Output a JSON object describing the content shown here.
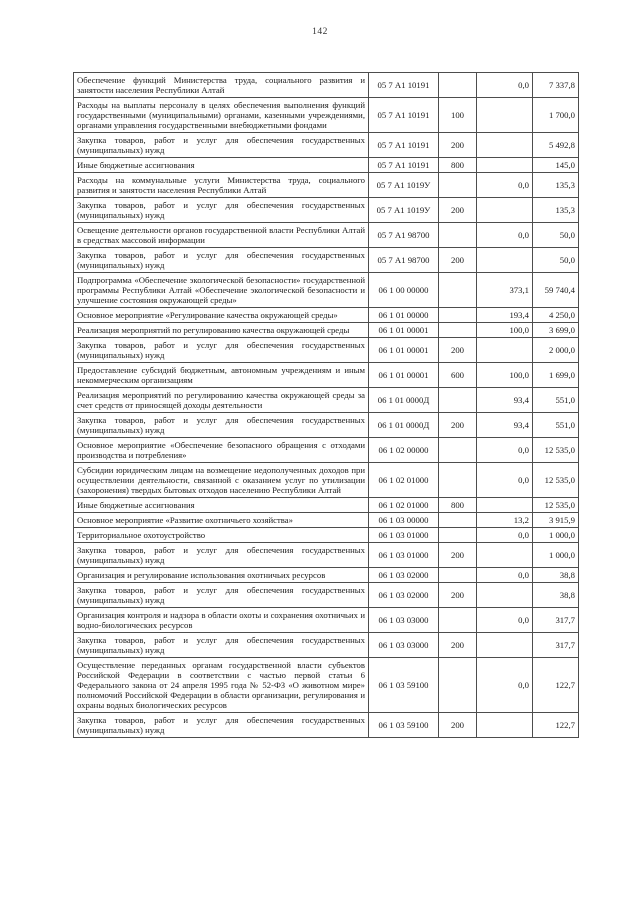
{
  "page": {
    "number": "142"
  },
  "table": {
    "rows": [
      {
        "name": "Обеспечение функций Министерства труда, социального развития и занятости населения Республики Алтай",
        "code": "05 7 А1 10191",
        "group": "",
        "pct": "0,0",
        "amount": "7 337,8"
      },
      {
        "name": "Расходы на выплаты персоналу в целях обеспечения выполнения функций государственными (муниципальными) органами, казенными учреждениями, органами управления государственными внебюджетными фондами",
        "code": "05 7 А1 10191",
        "group": "100",
        "pct": "",
        "amount": "1 700,0"
      },
      {
        "name": "Закупка товаров, работ и услуг для обеспечения государственных (муниципальных) нужд",
        "code": "05 7 А1 10191",
        "group": "200",
        "pct": "",
        "amount": "5 492,8"
      },
      {
        "name": "Иные бюджетные ассигнования",
        "code": "05 7 А1 10191",
        "group": "800",
        "pct": "",
        "amount": "145,0"
      },
      {
        "name": "Расходы на коммунальные услуги Министерства труда, социального развития и занятости населения Республики Алтай",
        "code": "05 7 А1 1019У",
        "group": "",
        "pct": "0,0",
        "amount": "135,3"
      },
      {
        "name": "Закупка товаров, работ и услуг для обеспечения государственных (муниципальных) нужд",
        "code": "05 7 А1 1019У",
        "group": "200",
        "pct": "",
        "amount": "135,3"
      },
      {
        "name": "Освещение деятельности органов государственной власти Республики Алтай   в средствах массовой информации",
        "code": "05 7 А1 98700",
        "group": "",
        "pct": "0,0",
        "amount": "50,0"
      },
      {
        "name": "Закупка товаров, работ и услуг для обеспечения государственных (муниципальных) нужд",
        "code": "05 7 А1 98700",
        "group": "200",
        "pct": "",
        "amount": "50,0"
      },
      {
        "name": "Подпрограмма «Обеспечение экологической безопасности» государственной программы Республики Алтай «Обеспечение экологической безопасности и улучшение состояния окружающей среды»",
        "code": "06 1 00 00000",
        "group": "",
        "pct": "373,1",
        "amount": "59 740,4"
      },
      {
        "name": "Основное мероприятие «Регулирование качества окружающей среды»",
        "code": "06 1 01 00000",
        "group": "",
        "pct": "193,4",
        "amount": "4 250,0"
      },
      {
        "name": "Реализация мероприятий по регулированию качества окружающей среды",
        "code": "06 1 01 00001",
        "group": "",
        "pct": "100,0",
        "amount": "3 699,0"
      },
      {
        "name": "Закупка товаров, работ и услуг для обеспечения государственных (муниципальных) нужд",
        "code": "06 1 01 00001",
        "group": "200",
        "pct": "",
        "amount": "2 000,0"
      },
      {
        "name": "Предоставление субсидий бюджетным, автономным учреждениям и иным некоммерческим организациям",
        "code": "06 1 01 00001",
        "group": "600",
        "pct": "100,0",
        "amount": "1 699,0"
      },
      {
        "name": "Реализация мероприятий по регулированию качества окружающей среды за счет средств от приносящей доходы деятельности",
        "code": "06 1 01 0000Д",
        "group": "",
        "pct": "93,4",
        "amount": "551,0"
      },
      {
        "name": "Закупка товаров, работ и услуг для обеспечения государственных (муниципальных) нужд",
        "code": "06 1 01 0000Д",
        "group": "200",
        "pct": "93,4",
        "amount": "551,0"
      },
      {
        "name": "Основное мероприятие «Обеспечение безопасного обращения с отходами производства и потребления»",
        "code": "06 1 02 00000",
        "group": "",
        "pct": "0,0",
        "amount": "12 535,0"
      },
      {
        "name": "Субсидии юридическим лицам на возмещение недополученных доходов при осуществлении деятельности, связанной с оказанием услуг по утилизации (захоронения) твердых бытовых отходов населению Республики Алтай",
        "code": "06 1 02 01000",
        "group": "",
        "pct": "0,0",
        "amount": "12 535,0"
      },
      {
        "name": "Иные бюджетные ассигнования",
        "code": "06 1 02 01000",
        "group": "800",
        "pct": "",
        "amount": "12 535,0"
      },
      {
        "name": "Основное мероприятие «Развитие охотничьего хозяйства»",
        "code": "06 1 03 00000",
        "group": "",
        "pct": "13,2",
        "amount": "3 915,9"
      },
      {
        "name": "Территориальное охотоустройство",
        "code": "06 1 03 01000",
        "group": "",
        "pct": "0,0",
        "amount": "1 000,0"
      },
      {
        "name": "Закупка товаров, работ и услуг для обеспечения государственных (муниципальных) нужд",
        "code": "06 1 03 01000",
        "group": "200",
        "pct": "",
        "amount": "1 000,0"
      },
      {
        "name": "Организация и регулирование использования охотничьих ресурсов",
        "code": "06 1 03 02000",
        "group": "",
        "pct": "0,0",
        "amount": "38,8"
      },
      {
        "name": "Закупка товаров, работ и услуг для обеспечения государственных (муниципальных) нужд",
        "code": "06 1 03 02000",
        "group": "200",
        "pct": "",
        "amount": "38,8"
      },
      {
        "name": "Организация контроля и надзора в области охоты и сохранения охотничьих и водно-биологических ресурсов",
        "code": "06 1 03 03000",
        "group": "",
        "pct": "0,0",
        "amount": "317,7"
      },
      {
        "name": "Закупка товаров, работ и услуг для обеспечения государственных (муниципальных) нужд",
        "code": "06 1 03 03000",
        "group": "200",
        "pct": "",
        "amount": "317,7"
      },
      {
        "name": "Осуществление переданных органам государственной власти субъектов Российской Федерации в соответствии с частью первой статьи 6 Федерального закона от 24 апреля 1995 года № 52-ФЗ «О животном мире» полномочий Российской Федерации в области организации, регулирования и охраны водных биологических ресурсов",
        "code": "06 1 03 59100",
        "group": "",
        "pct": "0,0",
        "amount": "122,7"
      },
      {
        "name": "Закупка товаров, работ и услуг для обеспечения государственных (муниципальных) нужд",
        "code": "06 1 03 59100",
        "group": "200",
        "pct": "",
        "amount": "122,7"
      }
    ]
  }
}
